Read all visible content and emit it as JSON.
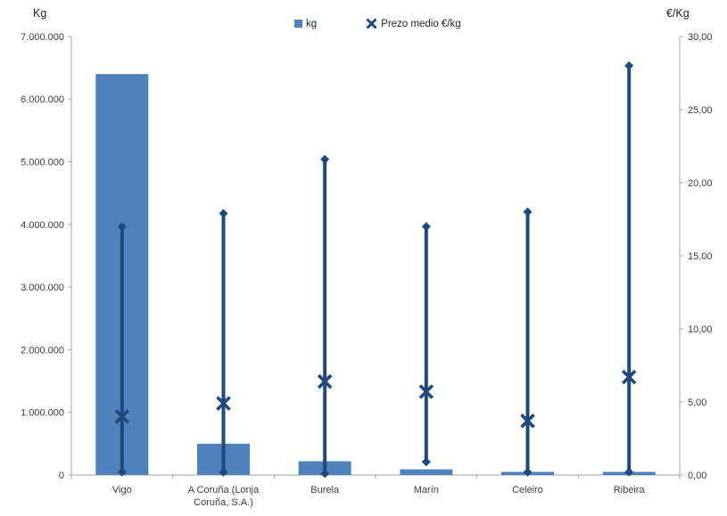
{
  "chart_data": {
    "type": "bar",
    "title": "",
    "categories": [
      "Vigo",
      "A Coruña (Lonja Coruña, S.A.)",
      "Burela",
      "Marín",
      "Celeiro",
      "Ribeira"
    ],
    "category_label_lines": [
      [
        "Vigo"
      ],
      [
        "A Coruña (Lonja",
        "Coruña, S.A.)"
      ],
      [
        "Burela"
      ],
      [
        "Marín"
      ],
      [
        "Celeiro"
      ],
      [
        "Ribeira"
      ]
    ],
    "series": [
      {
        "name": "kg",
        "type": "bar",
        "axis": "left",
        "values": [
          6400000,
          500000,
          220000,
          90000,
          50000,
          50000
        ]
      },
      {
        "name": "Prezo medio €/kg",
        "type": "hilo-x",
        "axis": "right",
        "mean": [
          4.0,
          4.9,
          6.4,
          5.7,
          3.7,
          6.7
        ],
        "max": [
          17.0,
          17.9,
          21.6,
          17.0,
          18.0,
          28.0
        ],
        "min": [
          0.2,
          0.2,
          0.1,
          0.9,
          0.2,
          0.2
        ]
      }
    ],
    "left_axis": {
      "title": "Kg",
      "min": 0,
      "max": 7000000,
      "step": 1000000,
      "ticks": [
        "7.000.000",
        "6.000.000",
        "5.000.000",
        "4.000.000",
        "3.000.000",
        "2.000.000",
        "1.000.000",
        "0"
      ]
    },
    "right_axis": {
      "title": "€/Kg",
      "min": 0,
      "max": 30,
      "step": 5,
      "ticks": [
        "30,00",
        "25,00",
        "20,00",
        "15,00",
        "10,00",
        "5,00",
        "0,00"
      ]
    },
    "legend": {
      "position": "top",
      "items": [
        {
          "label": "kg",
          "marker": "square"
        },
        {
          "label": "Prezo medio €/kg",
          "marker": "x"
        }
      ]
    },
    "grid": "off",
    "colors": {
      "bar": "#4F81BD",
      "line": "#1F497D",
      "axis": "#A6A6A6",
      "text": "#3F3F3F"
    }
  }
}
